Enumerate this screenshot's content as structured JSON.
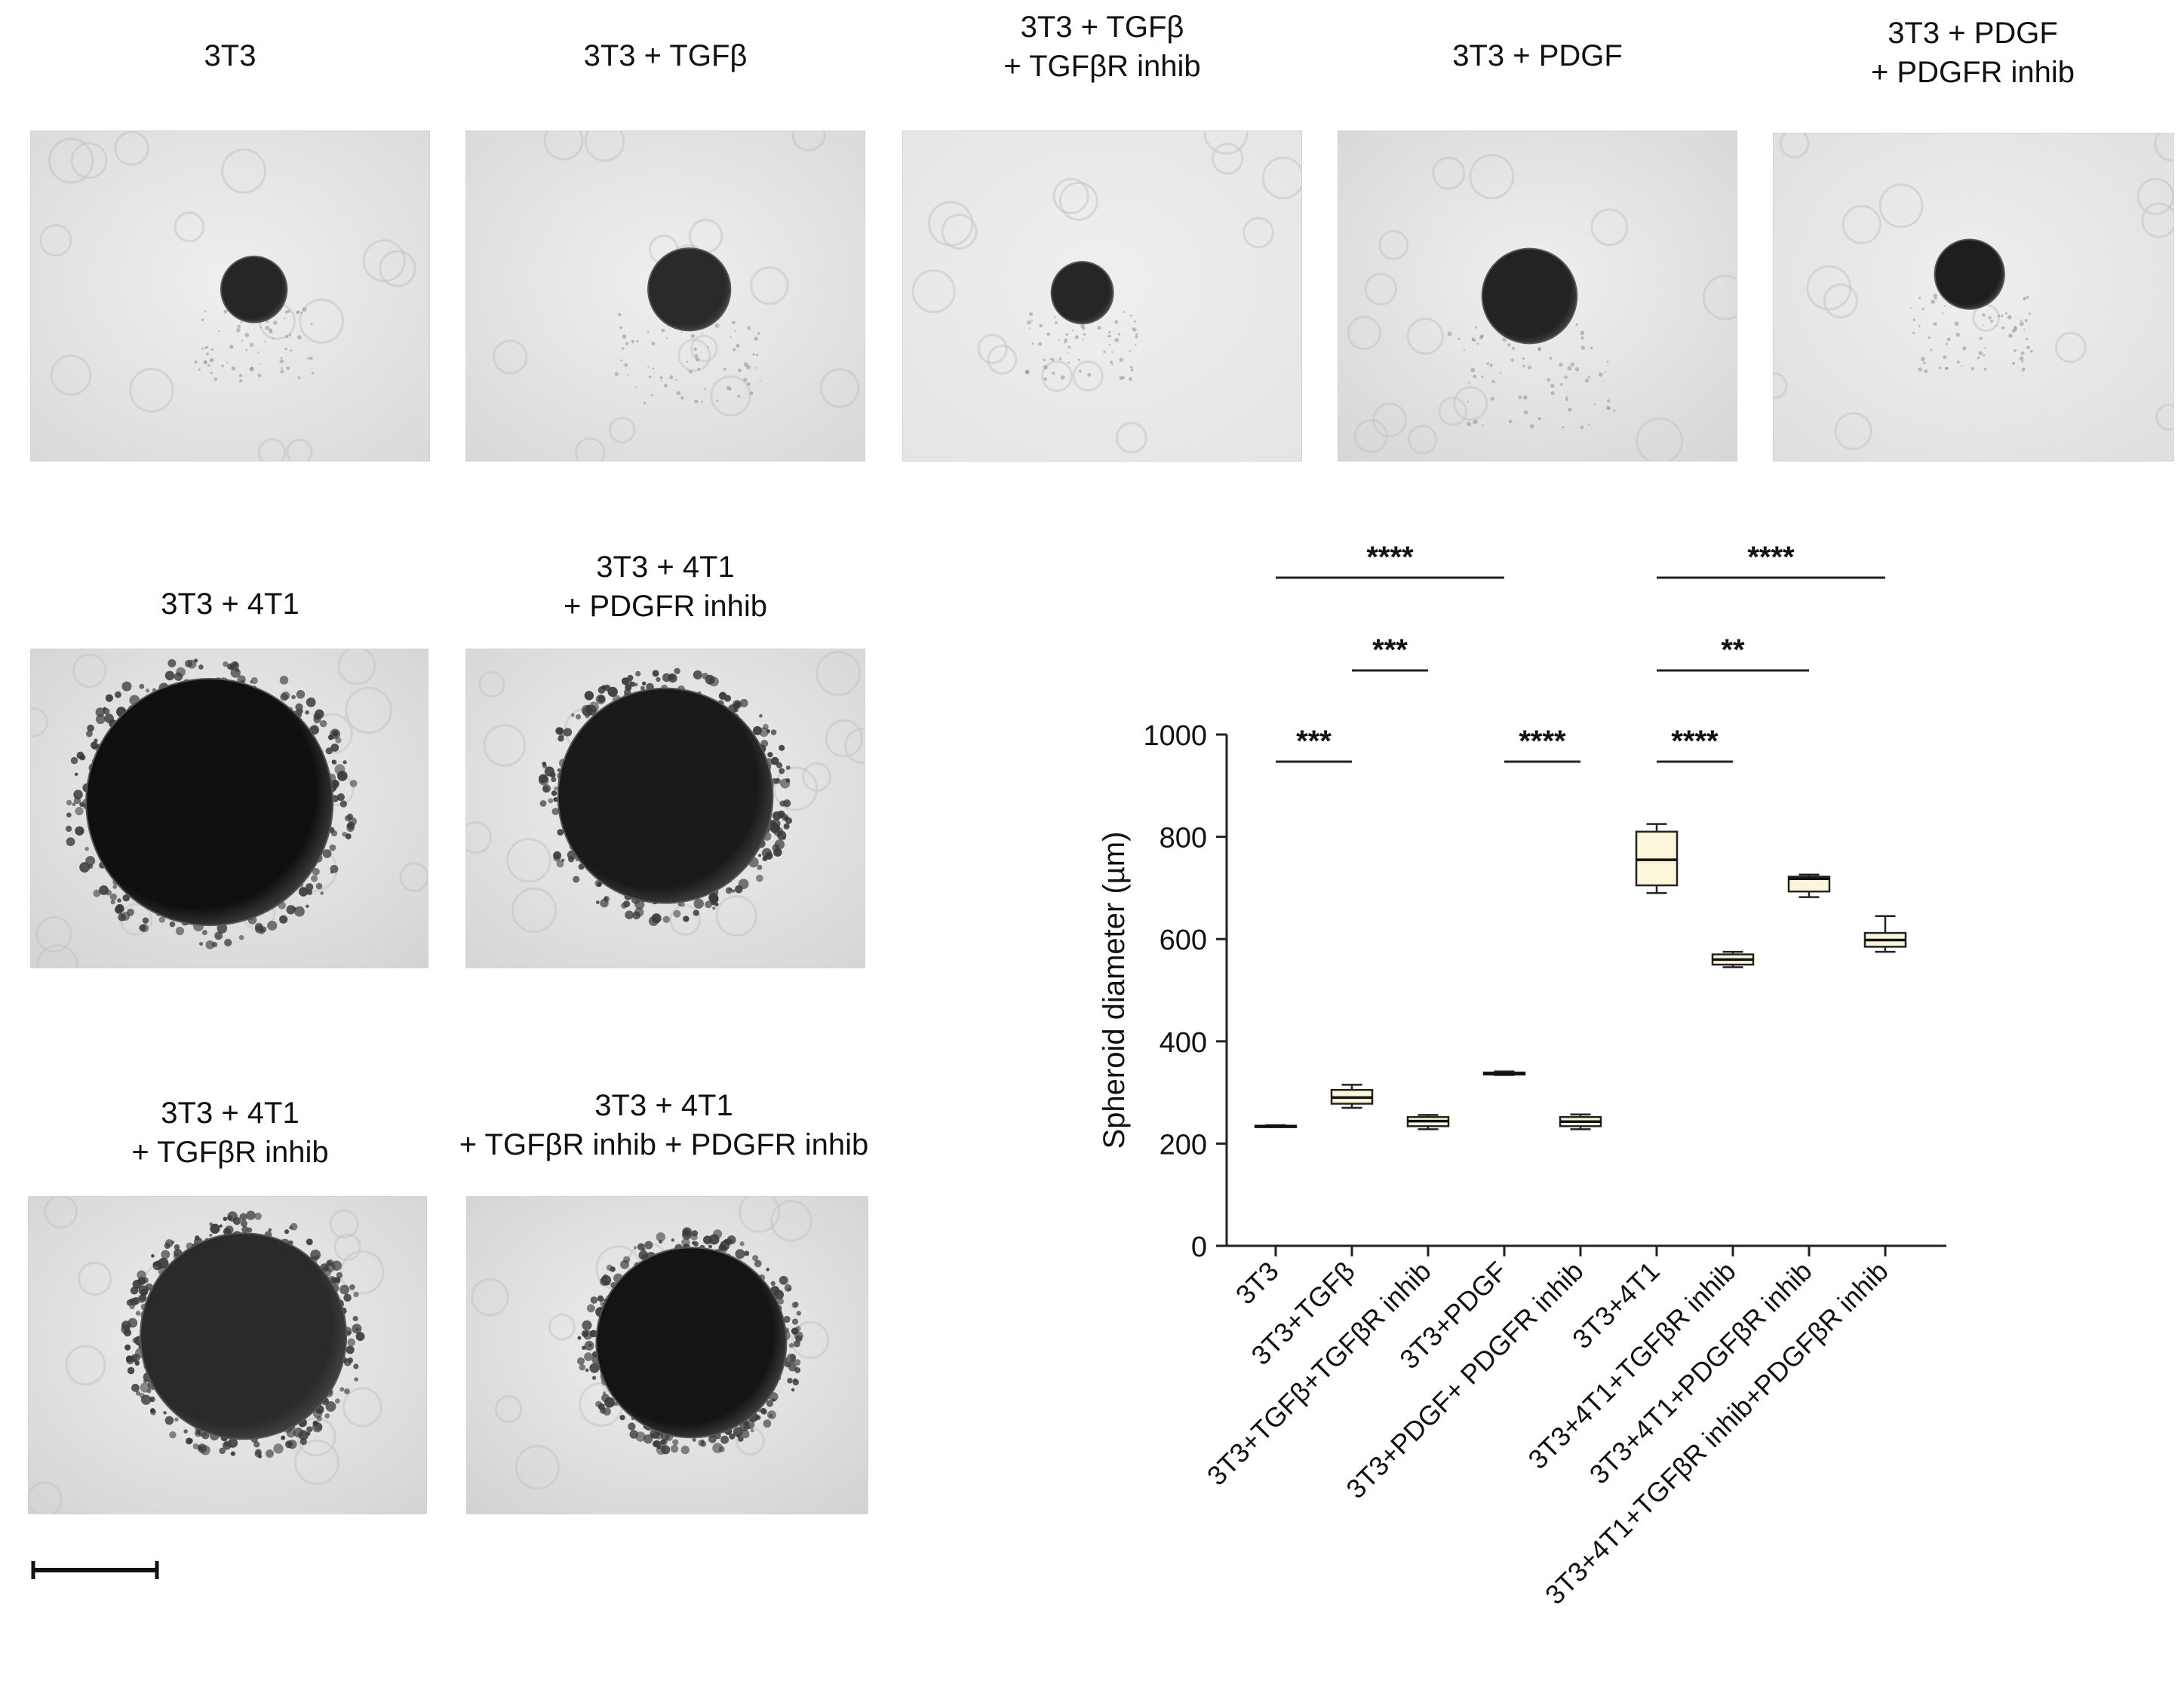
{
  "panels": [
    {
      "label_lines": [
        "3T3"
      ],
      "bg": "#d9d9d9",
      "spheroid_color": "#262626",
      "rough": false
    },
    {
      "label_lines": [
        "3T3 + TGFβ"
      ],
      "bg": "#d8d8d8",
      "spheroid_color": "#2a2a2a",
      "rough": false
    },
    {
      "label_lines": [
        "3T3 + TGFβ",
        "+ TGFβR inhib"
      ],
      "bg": "#e4e4e4",
      "spheroid_color": "#262626",
      "rough": false
    },
    {
      "label_lines": [
        "3T3 + PDGF"
      ],
      "bg": "#d6d6d6",
      "spheroid_color": "#232323",
      "rough": false
    },
    {
      "label_lines": [
        "3T3 + PDGF",
        "+ PDGFR inhib"
      ],
      "bg": "#dedede",
      "spheroid_color": "#1e1e1e",
      "rough": false
    },
    {
      "label_lines": [
        "3T3 + 4T1"
      ],
      "bg": "#d3d3d3",
      "spheroid_color": "#0f0f0f",
      "rough": true
    },
    {
      "label_lines": [
        "3T3 + 4T1",
        "+ PDGFR inhib"
      ],
      "bg": "#d5d5d5",
      "spheroid_color": "#1a1a1a",
      "rough": true
    },
    {
      "label_lines": [
        "3T3 + 4T1",
        "+ TGFβR inhib"
      ],
      "bg": "#d4d4d4",
      "spheroid_color": "#2a2a2a",
      "rough": true
    },
    {
      "label_lines": [
        "3T3 + 4T1",
        "+ TGFβR inhib + PDGFR inhib"
      ],
      "bg": "#d2d2d2",
      "spheroid_color": "#141414",
      "rough": true
    }
  ],
  "chart_data": {
    "type": "box",
    "ylabel": "Spheroid diameter (µm)",
    "ylim": [
      0,
      1000
    ],
    "yticks": [
      0,
      200,
      400,
      600,
      800,
      1000
    ],
    "categories": [
      "3T3",
      "3T3+TGFβ",
      "3T3+TGFβ+TGFβR inhib",
      "3T3+PDGF",
      "3T3+PDGF+ PDGFR inhib",
      "3T3+4T1",
      "3T3+4T1+TGFβR inhib",
      "3T3+4T1+PDGFβR inhib",
      "3T3+4T1+TGFβR inhib+PDGFβR inhib"
    ],
    "boxes": [
      {
        "min": 233,
        "q1": 233,
        "median": 234,
        "q3": 235,
        "max": 236
      },
      {
        "min": 270,
        "q1": 278,
        "median": 290,
        "q3": 305,
        "max": 315
      },
      {
        "min": 228,
        "q1": 234,
        "median": 244,
        "q3": 252,
        "max": 256
      },
      {
        "min": 334,
        "q1": 335,
        "median": 337,
        "q3": 339,
        "max": 341
      },
      {
        "min": 228,
        "q1": 234,
        "median": 243,
        "q3": 252,
        "max": 257
      },
      {
        "min": 690,
        "q1": 705,
        "median": 755,
        "q3": 810,
        "max": 825
      },
      {
        "min": 545,
        "q1": 550,
        "median": 560,
        "q3": 570,
        "max": 575
      },
      {
        "min": 682,
        "q1": 693,
        "median": 718,
        "q3": 722,
        "max": 726
      },
      {
        "min": 575,
        "q1": 585,
        "median": 598,
        "q3": 612,
        "max": 645
      }
    ],
    "significance": [
      {
        "from": 0,
        "to": 1,
        "label": "***",
        "level": 0
      },
      {
        "from": 3,
        "to": 4,
        "label": "****",
        "level": 0
      },
      {
        "from": 5,
        "to": 6,
        "label": "****",
        "level": 0
      },
      {
        "from": 1,
        "to": 2,
        "label": "***",
        "level": 1
      },
      {
        "from": 5,
        "to": 7,
        "label": "**",
        "level": 1
      },
      {
        "from": 0,
        "to": 3,
        "label": "****",
        "level": 2
      },
      {
        "from": 5,
        "to": 8,
        "label": "****",
        "level": 2
      }
    ],
    "box_fill": "#fbf6d9"
  }
}
